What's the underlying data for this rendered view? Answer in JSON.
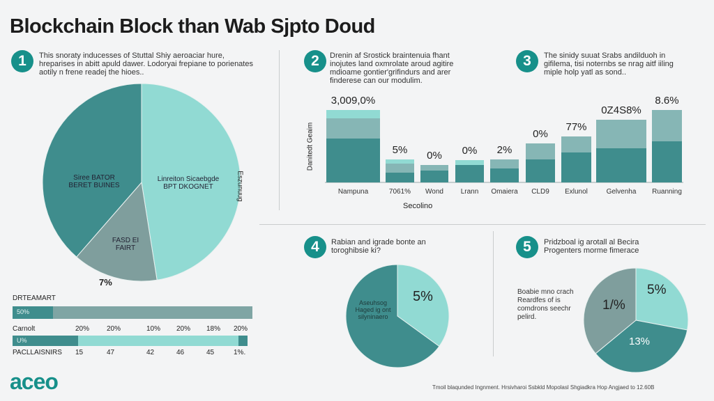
{
  "title": "Blockchain Block than Wab Sjpto Doud",
  "sections": [
    {
      "num": "1",
      "text": "This snoraty inducesses of Stuttal Shiy aeroaciar hure, hreparises in abitt apuld dawer. Lodoryai frepiane to porienates aotily n frene readej the hioes.."
    },
    {
      "num": "2",
      "text": "Drenin af Srostick braintenuia fhant inojutes land oxmrolate aroud agitire mdioame gontier'grifindurs and arer finderese can our modulim."
    },
    {
      "num": "3",
      "text": "The sinidy suuat Srabs andilduoh in gifilema, tisi noternbs se nrag aitf iiling miple holp yatl as sond.."
    },
    {
      "num": "4",
      "text": "Rabian and igrade bonte an toroghibsie ki?"
    },
    {
      "num": "5",
      "text": "Pridzboal ig arotall al Becira Progenters morme fimerace"
    }
  ],
  "colors": {
    "dark": "#3f8d8d",
    "mid": "#86b6b5",
    "light": "#91dad3",
    "gray": "#7f9e9d",
    "badge": "#17908a"
  },
  "chart_data": [
    {
      "type": "pie",
      "name": "main-pie",
      "slices": [
        {
          "label": "Linreiton Sicaebgde BPT DKOGNET",
          "value": 47.5,
          "color": "light"
        },
        {
          "label": "FASD EI FAIRT",
          "value": 13.9,
          "color": "gray"
        },
        {
          "label": "Siree BATOR BERET BUINES",
          "value": 38.6,
          "color": "dark"
        }
      ],
      "side_label": "Eszunuug",
      "bottom_label": "7%"
    },
    {
      "type": "bar",
      "name": "stacked-bar",
      "ylabel": "Danitedt Geaim",
      "xlabel": "Secolino",
      "categories": [
        "Nampuna",
        "7061%",
        "Wond",
        "Lrann",
        "Omaiera",
        "CLD9",
        "Exlunol",
        "Gelvenha",
        "Ruanning"
      ],
      "data_labels": [
        "3,009,0%",
        "5%",
        "0%",
        "0%",
        "2%",
        "0%",
        "77%",
        "0Z4S8%",
        "8.6%"
      ],
      "series": [
        {
          "name": "dark",
          "values": [
            63,
            14,
            17,
            25,
            20,
            33,
            43,
            49,
            59
          ]
        },
        {
          "name": "mid",
          "values": [
            29,
            13,
            8,
            0,
            13,
            23,
            23,
            41,
            45
          ]
        },
        {
          "name": "light",
          "values": [
            12,
            6,
            0,
            7,
            0,
            0,
            0,
            0,
            0
          ]
        }
      ],
      "ylim": [
        0,
        110
      ]
    },
    {
      "type": "pie",
      "name": "pie-4",
      "slices": [
        {
          "label": "5%",
          "value": 35,
          "color": "light"
        },
        {
          "label": "Aseuhsog Haged ig ont silyninaero",
          "value": 65,
          "color": "dark"
        }
      ]
    },
    {
      "type": "pie",
      "name": "pie-5",
      "slices": [
        {
          "label": "5%",
          "value": 28,
          "color": "light"
        },
        {
          "label": "13%",
          "value": 36,
          "color": "dark"
        },
        {
          "label": "1/%",
          "value": 36,
          "color": "gray"
        }
      ],
      "side_text": "Boabie mno crach Reardfes of is comdrons seechr pelird."
    }
  ],
  "progress": {
    "row1_label": "DRTEAMART",
    "bar1_label": "50%",
    "bar1_fill": 0.17,
    "row2_label": "Carnolt",
    "row2_values": [
      "20%",
      "20%",
      "10%",
      "20%",
      "18%",
      "20%"
    ],
    "bar2_label": "U%",
    "bar2_fill": 0.28,
    "row3_label": "PACLLAISNIRS",
    "row3_values": [
      "15",
      "47",
      "42",
      "46",
      "45",
      "1%."
    ]
  },
  "logo": "aceo",
  "footer": "Tmoil blaqunded Ingnment. Hrsivharoi Ssbkld Mopolasl Shgiadkra Hop Angjaed to 12.60B"
}
